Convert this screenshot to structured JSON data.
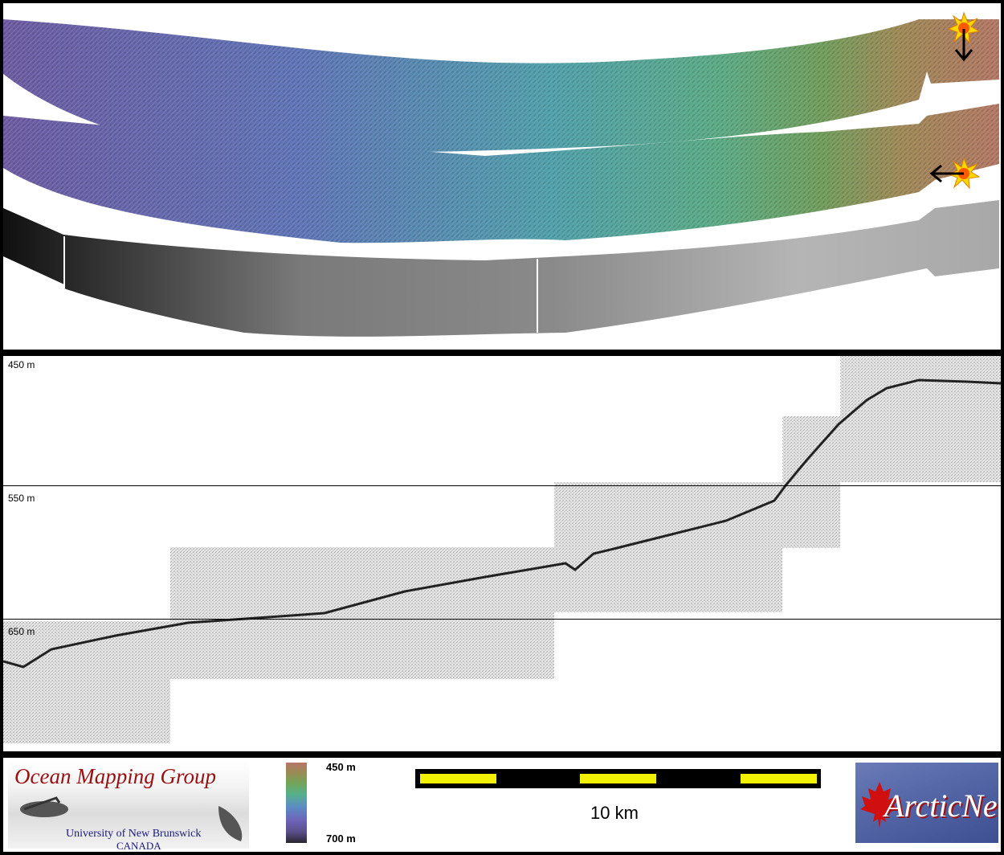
{
  "profile": {
    "depth_labels": [
      "450 m",
      "550 m",
      "650 m"
    ]
  },
  "footer": {
    "organization": {
      "title": "Ocean Mapping Group",
      "university": "University of New Brunswick",
      "country": "CANADA"
    },
    "legend": {
      "top_label": "450 m",
      "bottom_label": "700 m"
    },
    "scale_label": "10 km",
    "partner": {
      "name": "ArcticNet"
    }
  },
  "icons": {
    "sun_top": "sun-icon",
    "sun_bottom": "sun-icon",
    "arrow_down": "arrow-down-icon",
    "arrow_left": "arrow-left-icon",
    "maple_leaf": "maple-leaf-icon"
  }
}
